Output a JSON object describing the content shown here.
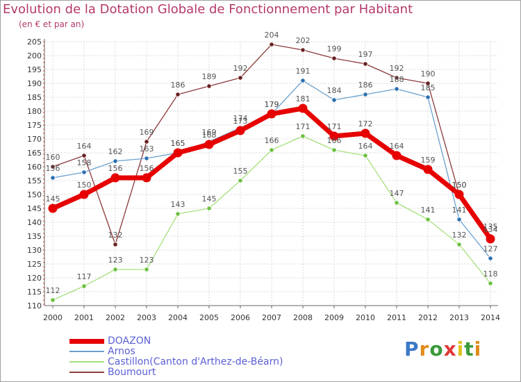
{
  "title": "Evolution de la Dotation Globale de Fonctionnement par Habitant",
  "subtitle": "(en € et par an)",
  "logo": "Proxiti",
  "chart_data": {
    "type": "line",
    "title": "Evolution de la Dotation Globale de Fonctionnement par Habitant",
    "subtitle": "(en € et par an)",
    "xlabel": "",
    "ylabel": "",
    "x": [
      "2000",
      "2001",
      "2002",
      "2003",
      "2004",
      "2005",
      "2006",
      "2007",
      "2008",
      "2009",
      "2010",
      "2011",
      "2012",
      "2013",
      "2014"
    ],
    "ylim": [
      110,
      205
    ],
    "yticks": [
      110,
      115,
      120,
      125,
      130,
      135,
      140,
      145,
      150,
      155,
      160,
      165,
      170,
      175,
      180,
      185,
      190,
      195,
      200,
      205
    ],
    "grid": true,
    "legend_position": "bottom-left",
    "series": [
      {
        "name": "DOAZON",
        "color": "#e60000",
        "values": [
          145,
          150,
          156,
          156,
          165,
          168,
          173,
          179,
          181,
          171,
          172,
          164,
          159,
          150,
          134
        ]
      },
      {
        "name": "Arnos",
        "color": "#6aa0d0",
        "values": [
          156,
          158,
          162,
          163,
          165,
          169,
          174,
          179,
          191,
          184,
          186,
          188,
          185,
          141,
          127
        ]
      },
      {
        "name": "Castillon(Canton d'Arthez-de-Béarn)",
        "color": "#a6e07c",
        "values": [
          112,
          117,
          123,
          123,
          143,
          145,
          155,
          166,
          171,
          166,
          164,
          147,
          141,
          132,
          118
        ]
      },
      {
        "name": "Boumourt",
        "color": "#8b3a3a",
        "values": [
          160,
          164,
          132,
          169,
          186,
          189,
          192,
          204,
          202,
          199,
          197,
          192,
          190,
          150,
          135
        ]
      }
    ]
  }
}
